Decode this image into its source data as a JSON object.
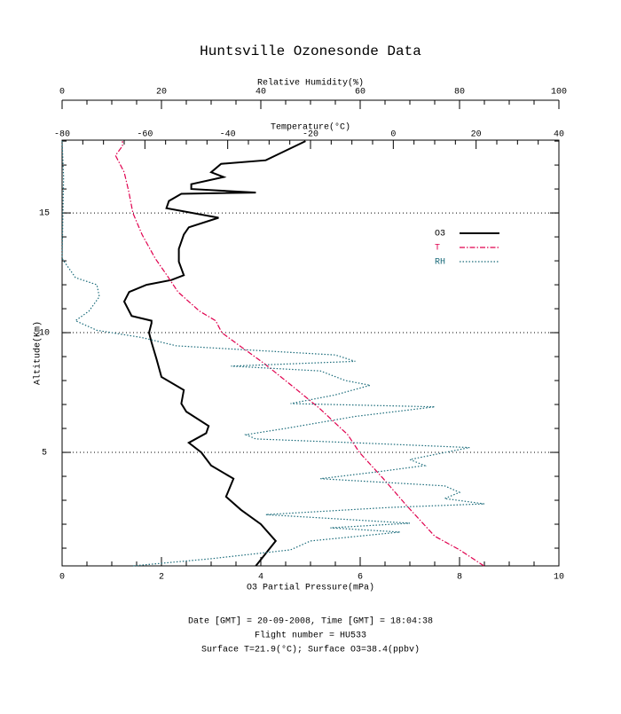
{
  "chart_data": {
    "type": "line",
    "title": "Huntsville Ozonesonde Data",
    "xlabel": "O3 Partial Pressure(mPa)",
    "xlim": [
      0,
      10
    ],
    "xticks": [
      0,
      2,
      4,
      6,
      8,
      10
    ],
    "x2label": "Relative Humidity(%)",
    "x2lim": [
      0,
      100
    ],
    "x2ticks": [
      0,
      20,
      40,
      60,
      80,
      100
    ],
    "x3label": "Temperature(°C)",
    "x3lim": [
      -80,
      40
    ],
    "x3ticks": [
      -80,
      -60,
      -40,
      -20,
      0,
      20,
      40
    ],
    "ylabel": "Altitude(Km)",
    "ylim": [
      0.26,
      18.04
    ],
    "yticks": [
      5,
      10,
      15
    ],
    "grid": true,
    "legend": "right",
    "series": [
      {
        "name": "O3",
        "color": "#000000",
        "axis": "x",
        "style": "solid",
        "altitude": [
          0.26,
          1.3,
          2.0,
          2.6,
          3.15,
          3.9,
          4.45,
          5.0,
          5.4,
          5.8,
          6.1,
          6.7,
          7.04,
          7.6,
          8.15,
          8.9,
          9.6,
          10.0,
          10.4,
          10.5,
          10.7,
          11.3,
          11.7,
          12.0,
          12.2,
          12.4,
          12.96,
          13.5,
          14.1,
          14.4,
          14.8,
          15.2,
          15.5,
          15.8,
          15.85,
          16.0,
          16.2,
          16.5,
          16.7,
          17.05,
          17.2,
          17.6,
          18.0
        ],
        "values": [
          3.9,
          4.3,
          4.0,
          3.6,
          3.3,
          3.45,
          3.0,
          2.8,
          2.55,
          2.9,
          2.95,
          2.5,
          2.4,
          2.45,
          2.0,
          1.9,
          1.8,
          1.75,
          1.8,
          1.8,
          1.4,
          1.25,
          1.35,
          1.7,
          2.2,
          2.45,
          2.35,
          2.35,
          2.45,
          2.55,
          3.15,
          2.1,
          2.15,
          2.4,
          3.9,
          2.6,
          2.6,
          3.25,
          3.0,
          3.2,
          4.1,
          4.5,
          4.9
        ]
      },
      {
        "name": "T",
        "color": "#e0004e",
        "axis": "x3",
        "style": "dashdot",
        "altitude": [
          0.26,
          0.93,
          1.5,
          2.8,
          3.9,
          5.0,
          5.74,
          6.85,
          7.6,
          8.7,
          9.45,
          10.0,
          10.5,
          10.9,
          11.7,
          12.4,
          13.1,
          14.1,
          15.0,
          15.9,
          16.7,
          17.4,
          17.8,
          18.0
        ],
        "values": [
          21.9,
          16,
          10,
          3.1,
          -2.4,
          -8.2,
          -11,
          -17.9,
          -23.2,
          -31.1,
          -37.1,
          -41.4,
          -42.9,
          -46.8,
          -52,
          -54.7,
          -57.5,
          -60.7,
          -62.9,
          -63.9,
          -65,
          -67.1,
          -65.4,
          -65.4
        ]
      },
      {
        "name": "RH",
        "color": "#1a6b7a",
        "axis": "x2",
        "style": "dotted",
        "altitude": [
          0.26,
          0.56,
          0.93,
          1.3,
          1.67,
          1.85,
          2.04,
          2.4,
          2.7,
          2.85,
          3.07,
          3.33,
          3.6,
          3.9,
          4.2,
          4.45,
          4.7,
          5.2,
          5.4,
          5.56,
          5.74,
          6.0,
          6.5,
          6.9,
          7.04,
          7.4,
          7.8,
          8.0,
          8.4,
          8.6,
          8.8,
          9.07,
          9.45,
          9.8,
          10.1,
          10.5,
          10.9,
          11.5,
          12.0,
          12.3,
          12.8,
          13.1,
          16.5,
          18.0
        ],
        "values": [
          14.3,
          30,
          46,
          50,
          68,
          54,
          70,
          41,
          66,
          85,
          77,
          80,
          77,
          52,
          64,
          73,
          70,
          82,
          59,
          39,
          37,
          45,
          59,
          75,
          46,
          55,
          62,
          57,
          52,
          34,
          59,
          55,
          23,
          16,
          7,
          2.7,
          5.4,
          7.5,
          7,
          2.7,
          1,
          0,
          0.3,
          0
        ]
      }
    ]
  },
  "footer": [
    "Date [GMT] = 20-09-2008,  Time [GMT] = 18:04:38",
    "Flight number = HU533",
    "Surface T=21.9(°C); Surface O3=38.4(ppbv)"
  ]
}
